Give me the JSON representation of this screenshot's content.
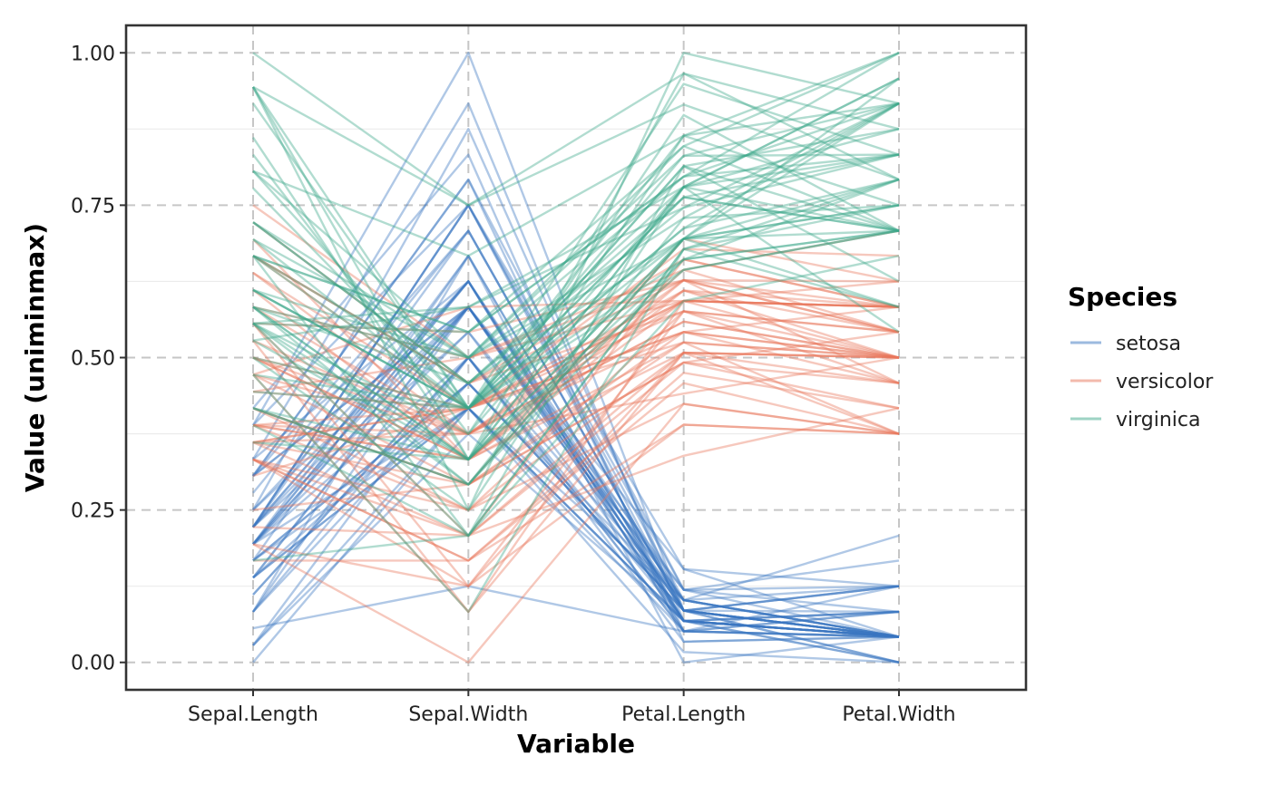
{
  "chart_data": {
    "type": "parallel-coordinates",
    "xlabel": "Variable",
    "ylabel": "Value (uniminmax)",
    "categories": [
      "Sepal.Length",
      "Sepal.Width",
      "Petal.Length",
      "Petal.Width"
    ],
    "ylim": [
      -0.045,
      1.045
    ],
    "y_ticks": [
      0.0,
      0.25,
      0.5,
      0.75,
      1.0
    ],
    "y_tick_labels": [
      "0.00",
      "0.25",
      "0.50",
      "0.75",
      "1.00"
    ],
    "grid": "major dashed grey, minor solid light grey",
    "legend": {
      "title": "Species",
      "position": "right",
      "entries": [
        "setosa",
        "versicolor",
        "virginica"
      ]
    },
    "series": [
      {
        "name": "setosa",
        "color": "#3a76c0",
        "opacity": 0.4,
        "lines": [
          [
            0.222,
            0.625,
            0.068,
            0.042
          ],
          [
            0.167,
            0.417,
            0.068,
            0.042
          ],
          [
            0.111,
            0.5,
            0.051,
            0.042
          ],
          [
            0.083,
            0.458,
            0.085,
            0.042
          ],
          [
            0.194,
            0.667,
            0.068,
            0.042
          ],
          [
            0.306,
            0.792,
            0.119,
            0.125
          ],
          [
            0.083,
            0.583,
            0.068,
            0.083
          ],
          [
            0.194,
            0.583,
            0.085,
            0.042
          ],
          [
            0.028,
            0.375,
            0.068,
            0.042
          ],
          [
            0.167,
            0.458,
            0.085,
            0.0
          ],
          [
            0.306,
            0.708,
            0.085,
            0.042
          ],
          [
            0.139,
            0.583,
            0.102,
            0.042
          ],
          [
            0.139,
            0.417,
            0.068,
            0.0
          ],
          [
            0.0,
            0.417,
            0.017,
            0.0
          ],
          [
            0.417,
            0.833,
            0.034,
            0.042
          ],
          [
            0.389,
            1.0,
            0.085,
            0.125
          ],
          [
            0.306,
            0.792,
            0.051,
            0.125
          ],
          [
            0.222,
            0.625,
            0.068,
            0.083
          ],
          [
            0.389,
            0.75,
            0.119,
            0.083
          ],
          [
            0.222,
            0.75,
            0.085,
            0.083
          ],
          [
            0.306,
            0.583,
            0.119,
            0.042
          ],
          [
            0.222,
            0.708,
            0.085,
            0.125
          ],
          [
            0.083,
            0.667,
            0.0,
            0.042
          ],
          [
            0.222,
            0.542,
            0.119,
            0.167
          ],
          [
            0.139,
            0.583,
            0.153,
            0.042
          ],
          [
            0.194,
            0.417,
            0.102,
            0.042
          ],
          [
            0.194,
            0.583,
            0.102,
            0.125
          ],
          [
            0.25,
            0.625,
            0.085,
            0.042
          ],
          [
            0.25,
            0.583,
            0.068,
            0.042
          ],
          [
            0.111,
            0.5,
            0.102,
            0.042
          ],
          [
            0.139,
            0.458,
            0.102,
            0.042
          ],
          [
            0.306,
            0.583,
            0.085,
            0.125
          ],
          [
            0.25,
            0.875,
            0.085,
            0.0
          ],
          [
            0.333,
            0.917,
            0.068,
            0.042
          ],
          [
            0.167,
            0.458,
            0.085,
            0.042
          ],
          [
            0.194,
            0.5,
            0.034,
            0.042
          ],
          [
            0.333,
            0.625,
            0.051,
            0.042
          ],
          [
            0.167,
            0.667,
            0.068,
            0.0
          ],
          [
            0.028,
            0.417,
            0.051,
            0.042
          ],
          [
            0.222,
            0.583,
            0.085,
            0.042
          ],
          [
            0.194,
            0.625,
            0.051,
            0.083
          ],
          [
            0.056,
            0.125,
            0.051,
            0.083
          ],
          [
            0.028,
            0.5,
            0.051,
            0.042
          ],
          [
            0.194,
            0.625,
            0.102,
            0.208
          ],
          [
            0.222,
            0.75,
            0.153,
            0.125
          ],
          [
            0.139,
            0.417,
            0.068,
            0.083
          ],
          [
            0.222,
            0.75,
            0.102,
            0.042
          ],
          [
            0.083,
            0.5,
            0.068,
            0.042
          ],
          [
            0.278,
            0.708,
            0.085,
            0.042
          ],
          [
            0.194,
            0.542,
            0.068,
            0.042
          ]
        ]
      },
      {
        "name": "versicolor",
        "color": "#e8765a",
        "opacity": 0.4,
        "lines": [
          [
            0.75,
            0.5,
            0.627,
            0.542
          ],
          [
            0.583,
            0.5,
            0.593,
            0.583
          ],
          [
            0.722,
            0.458,
            0.661,
            0.583
          ],
          [
            0.333,
            0.125,
            0.508,
            0.5
          ],
          [
            0.611,
            0.333,
            0.61,
            0.583
          ],
          [
            0.389,
            0.333,
            0.593,
            0.5
          ],
          [
            0.556,
            0.542,
            0.627,
            0.625
          ],
          [
            0.167,
            0.167,
            0.39,
            0.375
          ],
          [
            0.639,
            0.375,
            0.61,
            0.5
          ],
          [
            0.25,
            0.292,
            0.492,
            0.542
          ],
          [
            0.194,
            0.0,
            0.424,
            0.375
          ],
          [
            0.444,
            0.417,
            0.542,
            0.583
          ],
          [
            0.472,
            0.083,
            0.508,
            0.375
          ],
          [
            0.5,
            0.375,
            0.627,
            0.542
          ],
          [
            0.361,
            0.375,
            0.441,
            0.5
          ],
          [
            0.667,
            0.458,
            0.576,
            0.542
          ],
          [
            0.361,
            0.417,
            0.593,
            0.583
          ],
          [
            0.417,
            0.292,
            0.525,
            0.375
          ],
          [
            0.528,
            0.083,
            0.593,
            0.583
          ],
          [
            0.361,
            0.208,
            0.492,
            0.417
          ],
          [
            0.444,
            0.5,
            0.644,
            0.708
          ],
          [
            0.5,
            0.333,
            0.508,
            0.5
          ],
          [
            0.556,
            0.208,
            0.661,
            0.583
          ],
          [
            0.5,
            0.333,
            0.627,
            0.458
          ],
          [
            0.583,
            0.375,
            0.559,
            0.5
          ],
          [
            0.639,
            0.417,
            0.576,
            0.542
          ],
          [
            0.694,
            0.333,
            0.644,
            0.542
          ],
          [
            0.667,
            0.417,
            0.678,
            0.667
          ],
          [
            0.472,
            0.375,
            0.593,
            0.583
          ],
          [
            0.389,
            0.25,
            0.424,
            0.375
          ],
          [
            0.333,
            0.167,
            0.475,
            0.417
          ],
          [
            0.333,
            0.167,
            0.458,
            0.375
          ],
          [
            0.417,
            0.292,
            0.492,
            0.458
          ],
          [
            0.472,
            0.292,
            0.695,
            0.625
          ],
          [
            0.306,
            0.417,
            0.593,
            0.583
          ],
          [
            0.472,
            0.583,
            0.593,
            0.625
          ],
          [
            0.667,
            0.458,
            0.627,
            0.583
          ],
          [
            0.556,
            0.125,
            0.576,
            0.5
          ],
          [
            0.361,
            0.417,
            0.525,
            0.5
          ],
          [
            0.333,
            0.208,
            0.508,
            0.5
          ],
          [
            0.333,
            0.25,
            0.576,
            0.458
          ],
          [
            0.5,
            0.417,
            0.61,
            0.542
          ],
          [
            0.417,
            0.25,
            0.508,
            0.458
          ],
          [
            0.194,
            0.125,
            0.39,
            0.375
          ],
          [
            0.361,
            0.292,
            0.542,
            0.5
          ],
          [
            0.389,
            0.417,
            0.542,
            0.458
          ],
          [
            0.389,
            0.375,
            0.542,
            0.5
          ],
          [
            0.528,
            0.375,
            0.559,
            0.5
          ],
          [
            0.222,
            0.208,
            0.339,
            0.417
          ],
          [
            0.389,
            0.333,
            0.525,
            0.5
          ]
        ]
      },
      {
        "name": "virginica",
        "color": "#3da78a",
        "opacity": 0.4,
        "lines": [
          [
            0.556,
            0.542,
            0.847,
            1.0
          ],
          [
            0.417,
            0.292,
            0.695,
            0.75
          ],
          [
            0.778,
            0.417,
            0.831,
            0.833
          ],
          [
            0.556,
            0.375,
            0.78,
            0.708
          ],
          [
            0.611,
            0.417,
            0.814,
            0.875
          ],
          [
            0.917,
            0.417,
            0.949,
            0.833
          ],
          [
            0.167,
            0.208,
            0.593,
            0.667
          ],
          [
            0.833,
            0.375,
            0.898,
            0.708
          ],
          [
            0.667,
            0.208,
            0.814,
            0.708
          ],
          [
            0.806,
            0.667,
            0.864,
            1.0
          ],
          [
            0.611,
            0.5,
            0.695,
            0.792
          ],
          [
            0.583,
            0.292,
            0.729,
            0.75
          ],
          [
            0.694,
            0.417,
            0.763,
            0.833
          ],
          [
            0.389,
            0.208,
            0.678,
            0.792
          ],
          [
            0.417,
            0.333,
            0.695,
            0.958
          ],
          [
            0.583,
            0.5,
            0.729,
            0.917
          ],
          [
            0.611,
            0.417,
            0.763,
            0.708
          ],
          [
            0.944,
            0.75,
            0.966,
            0.875
          ],
          [
            0.944,
            0.25,
            1.0,
            0.917
          ],
          [
            0.472,
            0.083,
            0.678,
            0.583
          ],
          [
            0.722,
            0.5,
            0.797,
            0.917
          ],
          [
            0.361,
            0.333,
            0.661,
            0.792
          ],
          [
            0.944,
            0.333,
            0.966,
            0.792
          ],
          [
            0.556,
            0.292,
            0.661,
            0.708
          ],
          [
            0.667,
            0.542,
            0.797,
            0.833
          ],
          [
            0.806,
            0.5,
            0.847,
            0.708
          ],
          [
            0.528,
            0.333,
            0.644,
            0.708
          ],
          [
            0.5,
            0.417,
            0.661,
            0.708
          ],
          [
            0.583,
            0.333,
            0.78,
            0.833
          ],
          [
            0.806,
            0.417,
            0.814,
            0.625
          ],
          [
            0.861,
            0.333,
            0.864,
            0.75
          ],
          [
            1.0,
            0.75,
            0.915,
            0.792
          ],
          [
            0.583,
            0.333,
            0.78,
            0.875
          ],
          [
            0.556,
            0.333,
            0.695,
            0.583
          ],
          [
            0.5,
            0.25,
            0.78,
            0.542
          ],
          [
            0.944,
            0.417,
            0.864,
            0.917
          ],
          [
            0.556,
            0.583,
            0.78,
            0.958
          ],
          [
            0.583,
            0.458,
            0.763,
            0.708
          ],
          [
            0.472,
            0.417,
            0.644,
            0.708
          ],
          [
            0.722,
            0.458,
            0.746,
            0.833
          ],
          [
            0.667,
            0.458,
            0.78,
            0.958
          ],
          [
            0.722,
            0.458,
            0.695,
            0.917
          ],
          [
            0.417,
            0.292,
            0.695,
            0.75
          ],
          [
            0.694,
            0.5,
            0.831,
            0.917
          ],
          [
            0.667,
            0.542,
            0.797,
            1.0
          ],
          [
            0.667,
            0.417,
            0.712,
            0.917
          ],
          [
            0.556,
            0.208,
            0.678,
            0.75
          ],
          [
            0.611,
            0.417,
            0.712,
            0.792
          ],
          [
            0.528,
            0.583,
            0.746,
            0.917
          ],
          [
            0.444,
            0.417,
            0.695,
            0.708
          ]
        ]
      }
    ]
  }
}
